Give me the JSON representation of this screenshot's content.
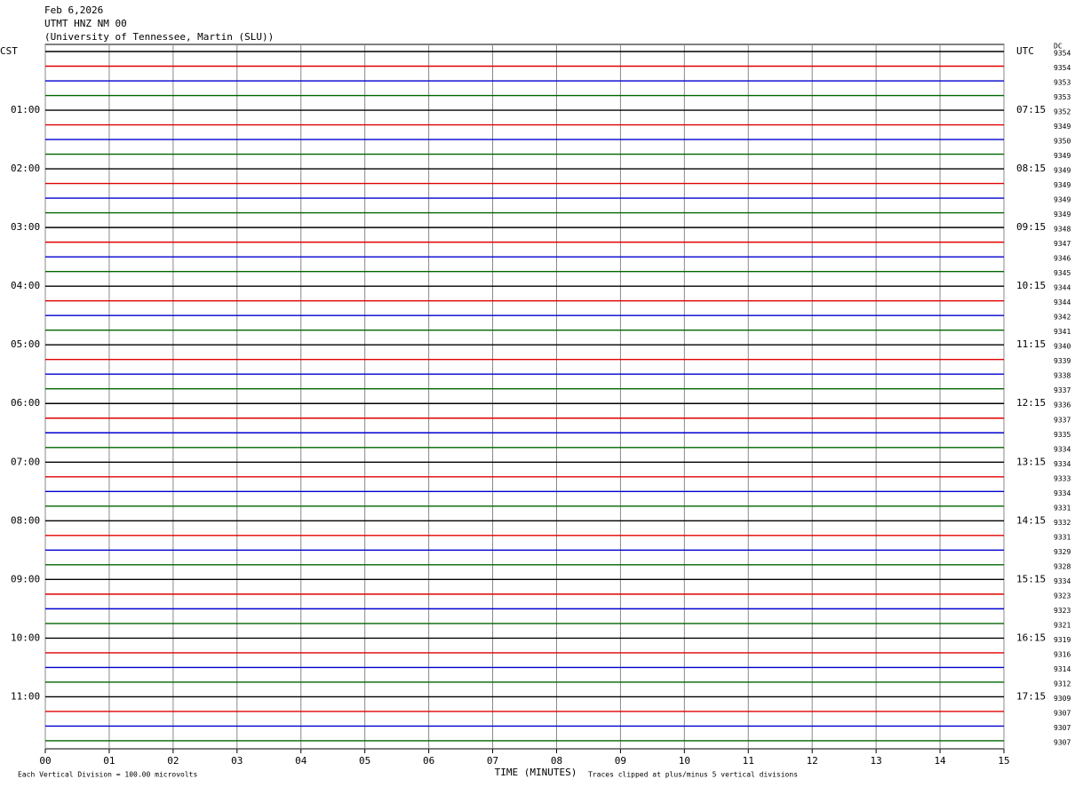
{
  "header": {
    "lines": [
      "Feb 6,2026",
      "UTMT HNZ NM 00",
      "(University of Tennessee, Martin (SLU))"
    ]
  },
  "left_labels": [
    "CST",
    "01:00",
    "02:00",
    "03:00",
    "04:00",
    "05:00",
    "06:00",
    "07:00",
    "08:00",
    "09:00",
    "10:00",
    "11:00"
  ],
  "right_labels": [
    "UTC",
    "07:15",
    "08:15",
    "09:15",
    "10:15",
    "11:15",
    "12:15",
    "13:15",
    "14:15",
    "15:15",
    "16:15",
    "17:15"
  ],
  "dc_header": "DC",
  "dc_values": [
    9354,
    9354,
    9353,
    9353,
    9352,
    9349,
    9350,
    9349,
    9349,
    9349,
    9349,
    9349,
    9348,
    9347,
    9346,
    9345,
    9344,
    9344,
    9342,
    9341,
    9340,
    9339,
    9338,
    9337,
    9336,
    9337,
    9335,
    9334,
    9334,
    9333,
    9334,
    9331,
    9332,
    9331,
    9329,
    9328,
    9334,
    9323,
    9323,
    9321,
    9319,
    9316,
    9314,
    9312,
    9309,
    9307,
    9307,
    9307
  ],
  "trace_colors": [
    "#000000",
    "#e00000",
    "#0000d0",
    "#006400"
  ],
  "x_axis": {
    "title": "TIME (MINUTES)",
    "ticks": [
      "00",
      "01",
      "02",
      "03",
      "04",
      "05",
      "06",
      "07",
      "08",
      "09",
      "10",
      "11",
      "12",
      "13",
      "14",
      "15"
    ]
  },
  "footer": {
    "left": "Each Vertical Division =  100.00 microvolts",
    "right": "Traces clipped at plus/minus 5 vertical divisions"
  }
}
